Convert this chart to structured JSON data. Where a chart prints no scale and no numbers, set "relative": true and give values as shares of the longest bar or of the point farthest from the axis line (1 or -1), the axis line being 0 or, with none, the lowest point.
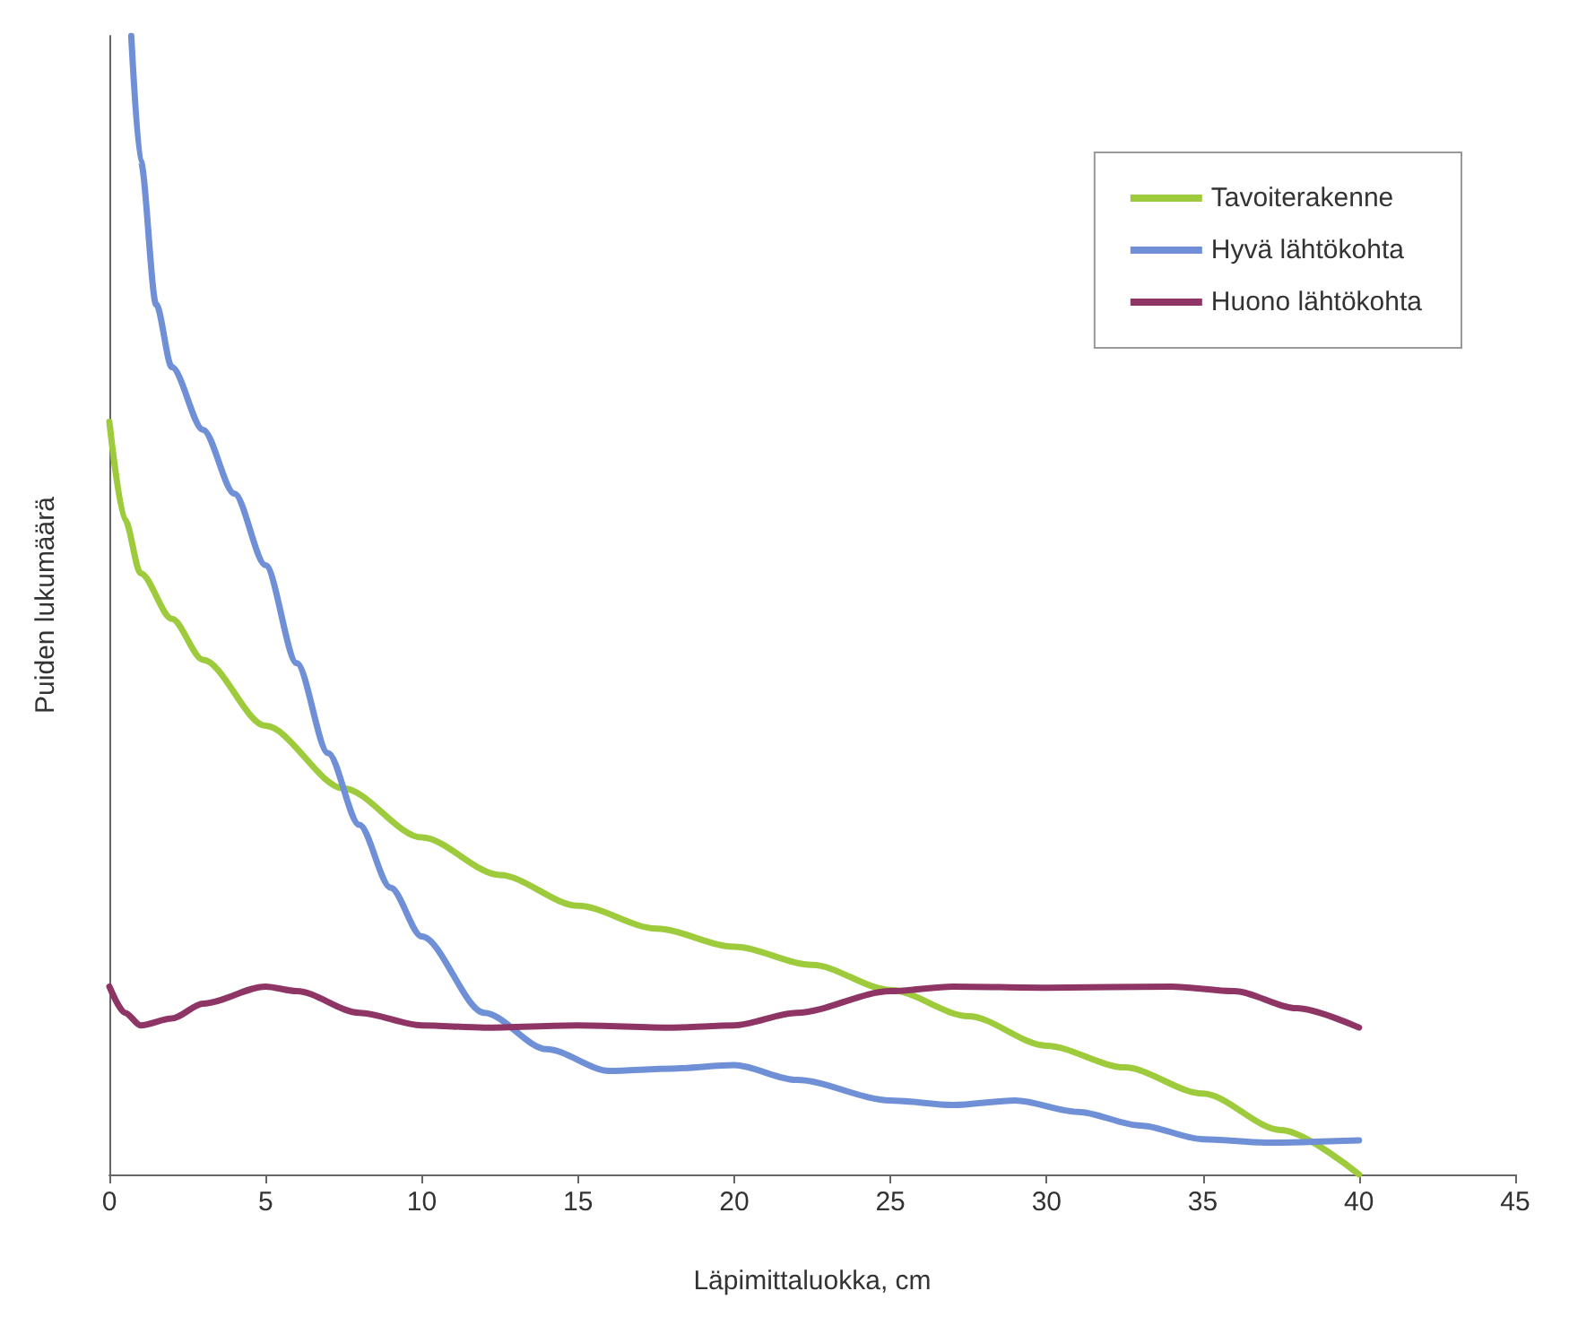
{
  "chart_data": {
    "type": "line",
    "relative": true,
    "xlabel": "Läpimittaluokka, cm",
    "ylabel": "Puiden lukumäärä",
    "xlim": [
      0,
      45
    ],
    "xticks": [
      0,
      5,
      10,
      15,
      20,
      25,
      30,
      35,
      40,
      45
    ],
    "tick_labels": "x",
    "legend": "top right",
    "grid": false,
    "marker": "none",
    "line_style": "solid",
    "series": [
      {
        "name": "Tavoiterakenne",
        "color": "#9dcb3c",
        "x": [
          0,
          0.5,
          1,
          2,
          3,
          5,
          7.5,
          10,
          12.5,
          15,
          17.5,
          20,
          22.5,
          25,
          27.5,
          30,
          32.5,
          35,
          37.5,
          40
        ],
        "values": [
          0.661,
          0.575,
          0.528,
          0.488,
          0.452,
          0.394,
          0.339,
          0.296,
          0.263,
          0.236,
          0.216,
          0.2,
          0.184,
          0.162,
          0.139,
          0.113,
          0.094,
          0.071,
          0.039,
          0
        ]
      },
      {
        "name": "Hyvä lähtökohta",
        "color": "#6f8fd6",
        "x": [
          0.7,
          1,
          1.5,
          2,
          3,
          4,
          5,
          6,
          7,
          8,
          9,
          10,
          12,
          14,
          16,
          18,
          20,
          22,
          25,
          27,
          29,
          31,
          33,
          35,
          37,
          40
        ],
        "values": [
          1,
          0.89,
          0.764,
          0.709,
          0.654,
          0.598,
          0.535,
          0.449,
          0.37,
          0.307,
          0.252,
          0.209,
          0.142,
          0.11,
          0.091,
          0.093,
          0.096,
          0.083,
          0.065,
          0.061,
          0.065,
          0.055,
          0.043,
          0.031,
          0.028,
          0.03
        ]
      },
      {
        "name": "Huono lähtökohta",
        "color": "#8e3566",
        "x": [
          0,
          0.5,
          1,
          2,
          3,
          5,
          6,
          8,
          10,
          12,
          15,
          18,
          20,
          22,
          25,
          27,
          30,
          34,
          36,
          38,
          40
        ],
        "values": [
          0.165,
          0.142,
          0.131,
          0.137,
          0.15,
          0.165,
          0.161,
          0.142,
          0.131,
          0.129,
          0.131,
          0.129,
          0.131,
          0.142,
          0.161,
          0.165,
          0.164,
          0.165,
          0.161,
          0.146,
          0.129
        ]
      }
    ]
  }
}
